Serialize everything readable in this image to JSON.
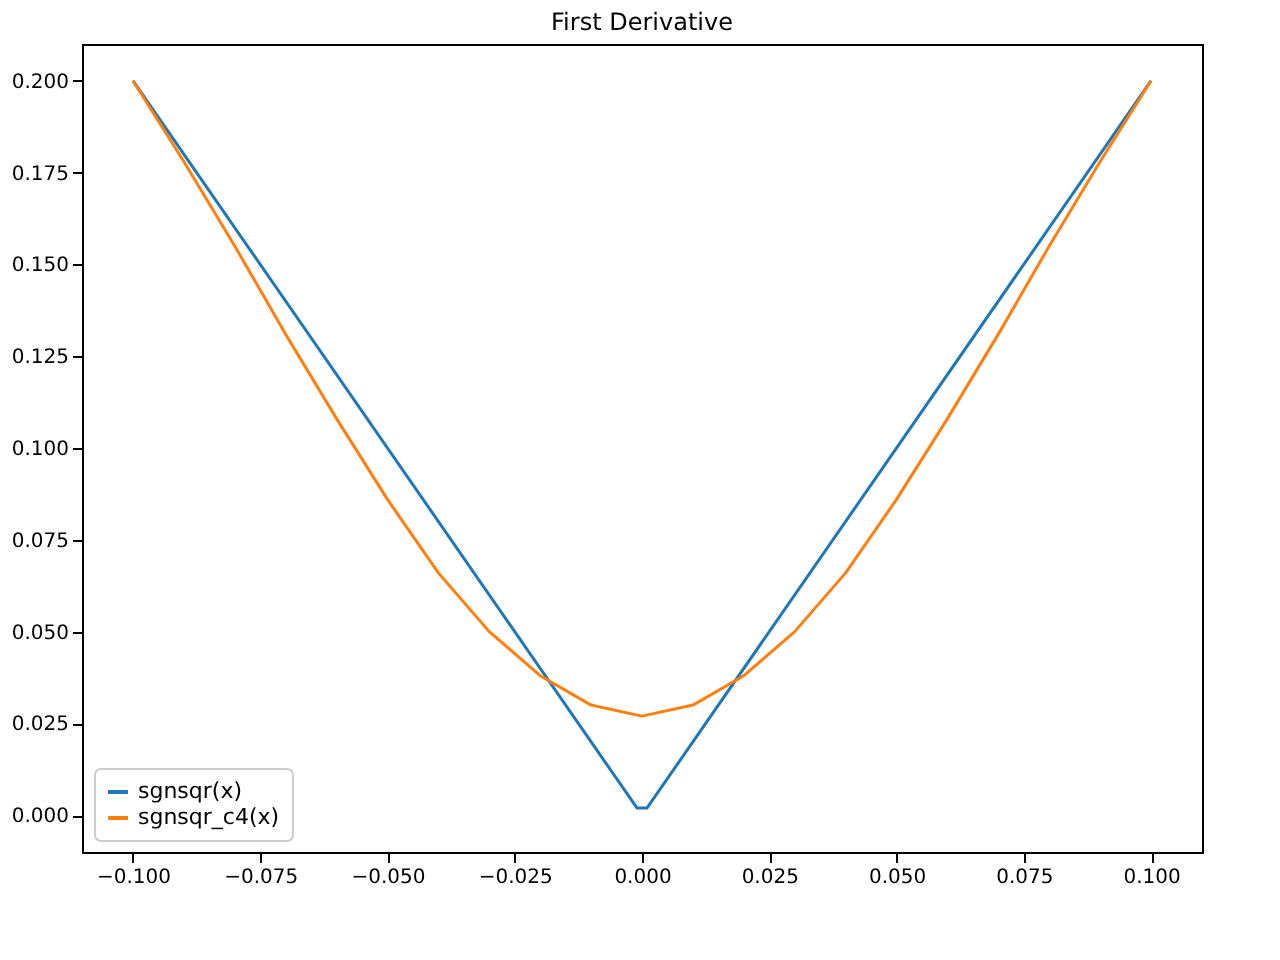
{
  "chart_data": {
    "type": "line",
    "title": "First Derivative",
    "series": [
      {
        "name": "sgnsqr(x)",
        "color": "#1f77b4",
        "x": [
          -0.1,
          -0.001,
          0.001,
          0.1
        ],
        "values": [
          0.2,
          0.002,
          0.002,
          0.2
        ]
      },
      {
        "name": "sgnsqr_c4(x)",
        "color": "#ff7f0e",
        "x": [
          -0.1,
          -0.09,
          -0.08,
          -0.07,
          -0.06,
          -0.05,
          -0.04,
          -0.03,
          -0.02,
          -0.01,
          0,
          0.01,
          0.02,
          0.03,
          0.04,
          0.05,
          0.06,
          0.07,
          0.08,
          0.09,
          0.1
        ],
        "values": [
          0.2,
          0.178,
          0.155,
          0.131,
          0.108,
          0.086,
          0.066,
          0.05,
          0.038,
          0.03,
          0.027,
          0.03,
          0.038,
          0.05,
          0.066,
          0.086,
          0.108,
          0.131,
          0.155,
          0.178,
          0.2
        ]
      }
    ],
    "xlim": [
      -0.11,
      0.11
    ],
    "ylim": [
      -0.01,
      0.21
    ],
    "xticks": [
      {
        "value": -0.1,
        "label": "−0.100"
      },
      {
        "value": -0.075,
        "label": "−0.075"
      },
      {
        "value": -0.05,
        "label": "−0.050"
      },
      {
        "value": -0.025,
        "label": "−0.025"
      },
      {
        "value": 0,
        "label": "0.000"
      },
      {
        "value": 0.025,
        "label": "0.025"
      },
      {
        "value": 0.05,
        "label": "0.050"
      },
      {
        "value": 0.075,
        "label": "0.075"
      },
      {
        "value": 0.1,
        "label": "0.100"
      }
    ],
    "yticks": [
      {
        "value": 0,
        "label": "0.000"
      },
      {
        "value": 0.025,
        "label": "0.025"
      },
      {
        "value": 0.05,
        "label": "0.050"
      },
      {
        "value": 0.075,
        "label": "0.075"
      },
      {
        "value": 0.1,
        "label": "0.100"
      },
      {
        "value": 0.125,
        "label": "0.125"
      },
      {
        "value": 0.15,
        "label": "0.150"
      },
      {
        "value": 0.175,
        "label": "0.175"
      },
      {
        "value": 0.2,
        "label": "0.200"
      }
    ],
    "legend": "bottom left",
    "grid": false,
    "marker": "none",
    "line_style": "solid"
  }
}
